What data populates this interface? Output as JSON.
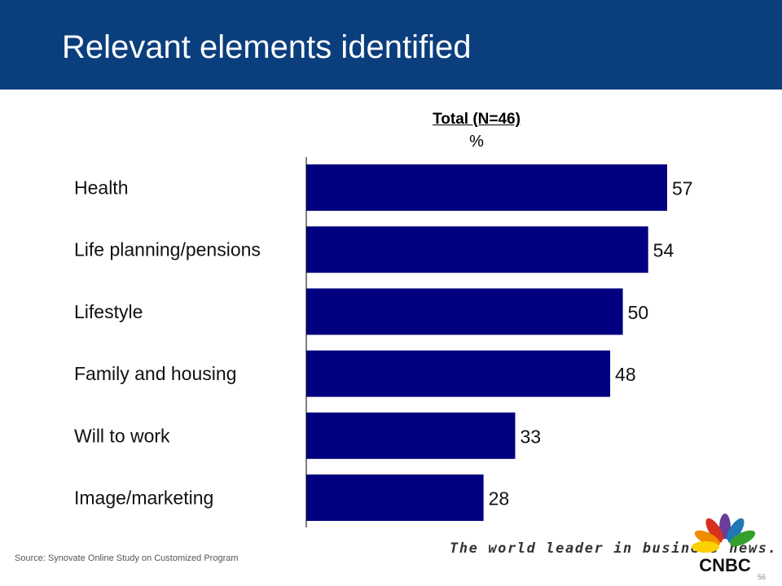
{
  "header": {
    "title": "Relevant elements identified"
  },
  "chart_data": {
    "type": "bar",
    "orientation": "horizontal",
    "column_header": "Total (N=46)",
    "unit": "%",
    "categories": [
      "Health",
      "Life planning/pensions",
      "Lifestyle",
      "Family and housing",
      "Will to work",
      "Image/marketing"
    ],
    "values": [
      57,
      54,
      50,
      48,
      33,
      28
    ],
    "xlim": [
      0,
      62
    ],
    "bar_color": "#000080",
    "grid": false
  },
  "footer": {
    "source": "Source: Synovate Online Study on Customized Program",
    "tagline": "The world leader in business news.",
    "page_number": "56",
    "logo_text": "CNBC"
  },
  "colors": {
    "header_bg": "#0b3e7d",
    "bar": "#000080"
  }
}
